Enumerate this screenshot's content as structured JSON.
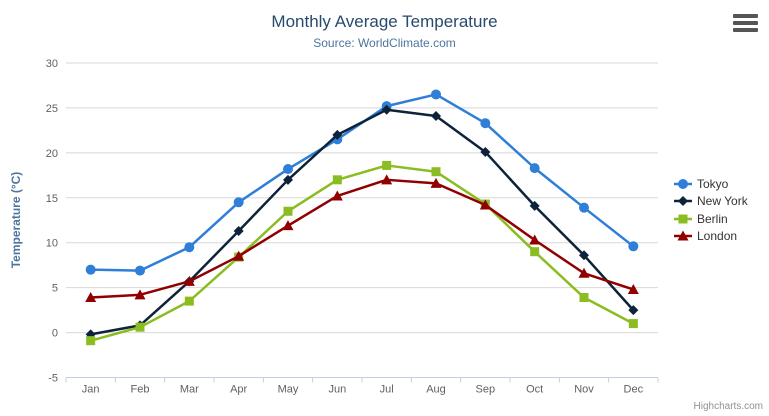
{
  "header": {
    "title": "Monthly Average Temperature",
    "subtitle": "Source: WorldClimate.com"
  },
  "chart_data": {
    "type": "line",
    "title": "Monthly Average Temperature",
    "subtitle": "Source: WorldClimate.com",
    "categories": [
      "Jan",
      "Feb",
      "Mar",
      "Apr",
      "May",
      "Jun",
      "Jul",
      "Aug",
      "Sep",
      "Oct",
      "Nov",
      "Dec"
    ],
    "xlabel": "",
    "ylabel": "Temperature (°C)",
    "ylim": [
      -5,
      30
    ],
    "ytick_interval": 5,
    "grid": true,
    "legend_position": "right",
    "series": [
      {
        "name": "Tokyo",
        "color": "#2f7ed8",
        "marker": "circle",
        "values": [
          7.0,
          6.9,
          9.5,
          14.5,
          18.2,
          21.5,
          25.2,
          26.5,
          23.3,
          18.3,
          13.9,
          9.6
        ]
      },
      {
        "name": "New York",
        "color": "#0d233a",
        "marker": "diamond",
        "values": [
          -0.2,
          0.8,
          5.7,
          11.3,
          17.0,
          22.0,
          24.8,
          24.1,
          20.1,
          14.1,
          8.6,
          2.5
        ]
      },
      {
        "name": "Berlin",
        "color": "#8bbc21",
        "marker": "square",
        "values": [
          -0.9,
          0.6,
          3.5,
          8.4,
          13.5,
          17.0,
          18.6,
          17.9,
          14.3,
          9.0,
          3.9,
          1.0
        ]
      },
      {
        "name": "London",
        "color": "#910000",
        "marker": "triangle",
        "values": [
          3.9,
          4.2,
          5.7,
          8.5,
          11.9,
          15.2,
          17.0,
          16.6,
          14.2,
          10.3,
          6.6,
          4.8
        ]
      }
    ]
  },
  "credits": {
    "label": "Highcharts.com"
  },
  "theme": {
    "title_color": "#274b6d",
    "subtitle_color": "#4d759e",
    "axis_label_color": "#606060",
    "axis_title_color": "#4d759e",
    "grid_color": "#d8d8d8",
    "axis_line_color": "#c0d0e0",
    "legend_text_color": "#333333",
    "credits_color": "#909090",
    "background": "#ffffff"
  }
}
